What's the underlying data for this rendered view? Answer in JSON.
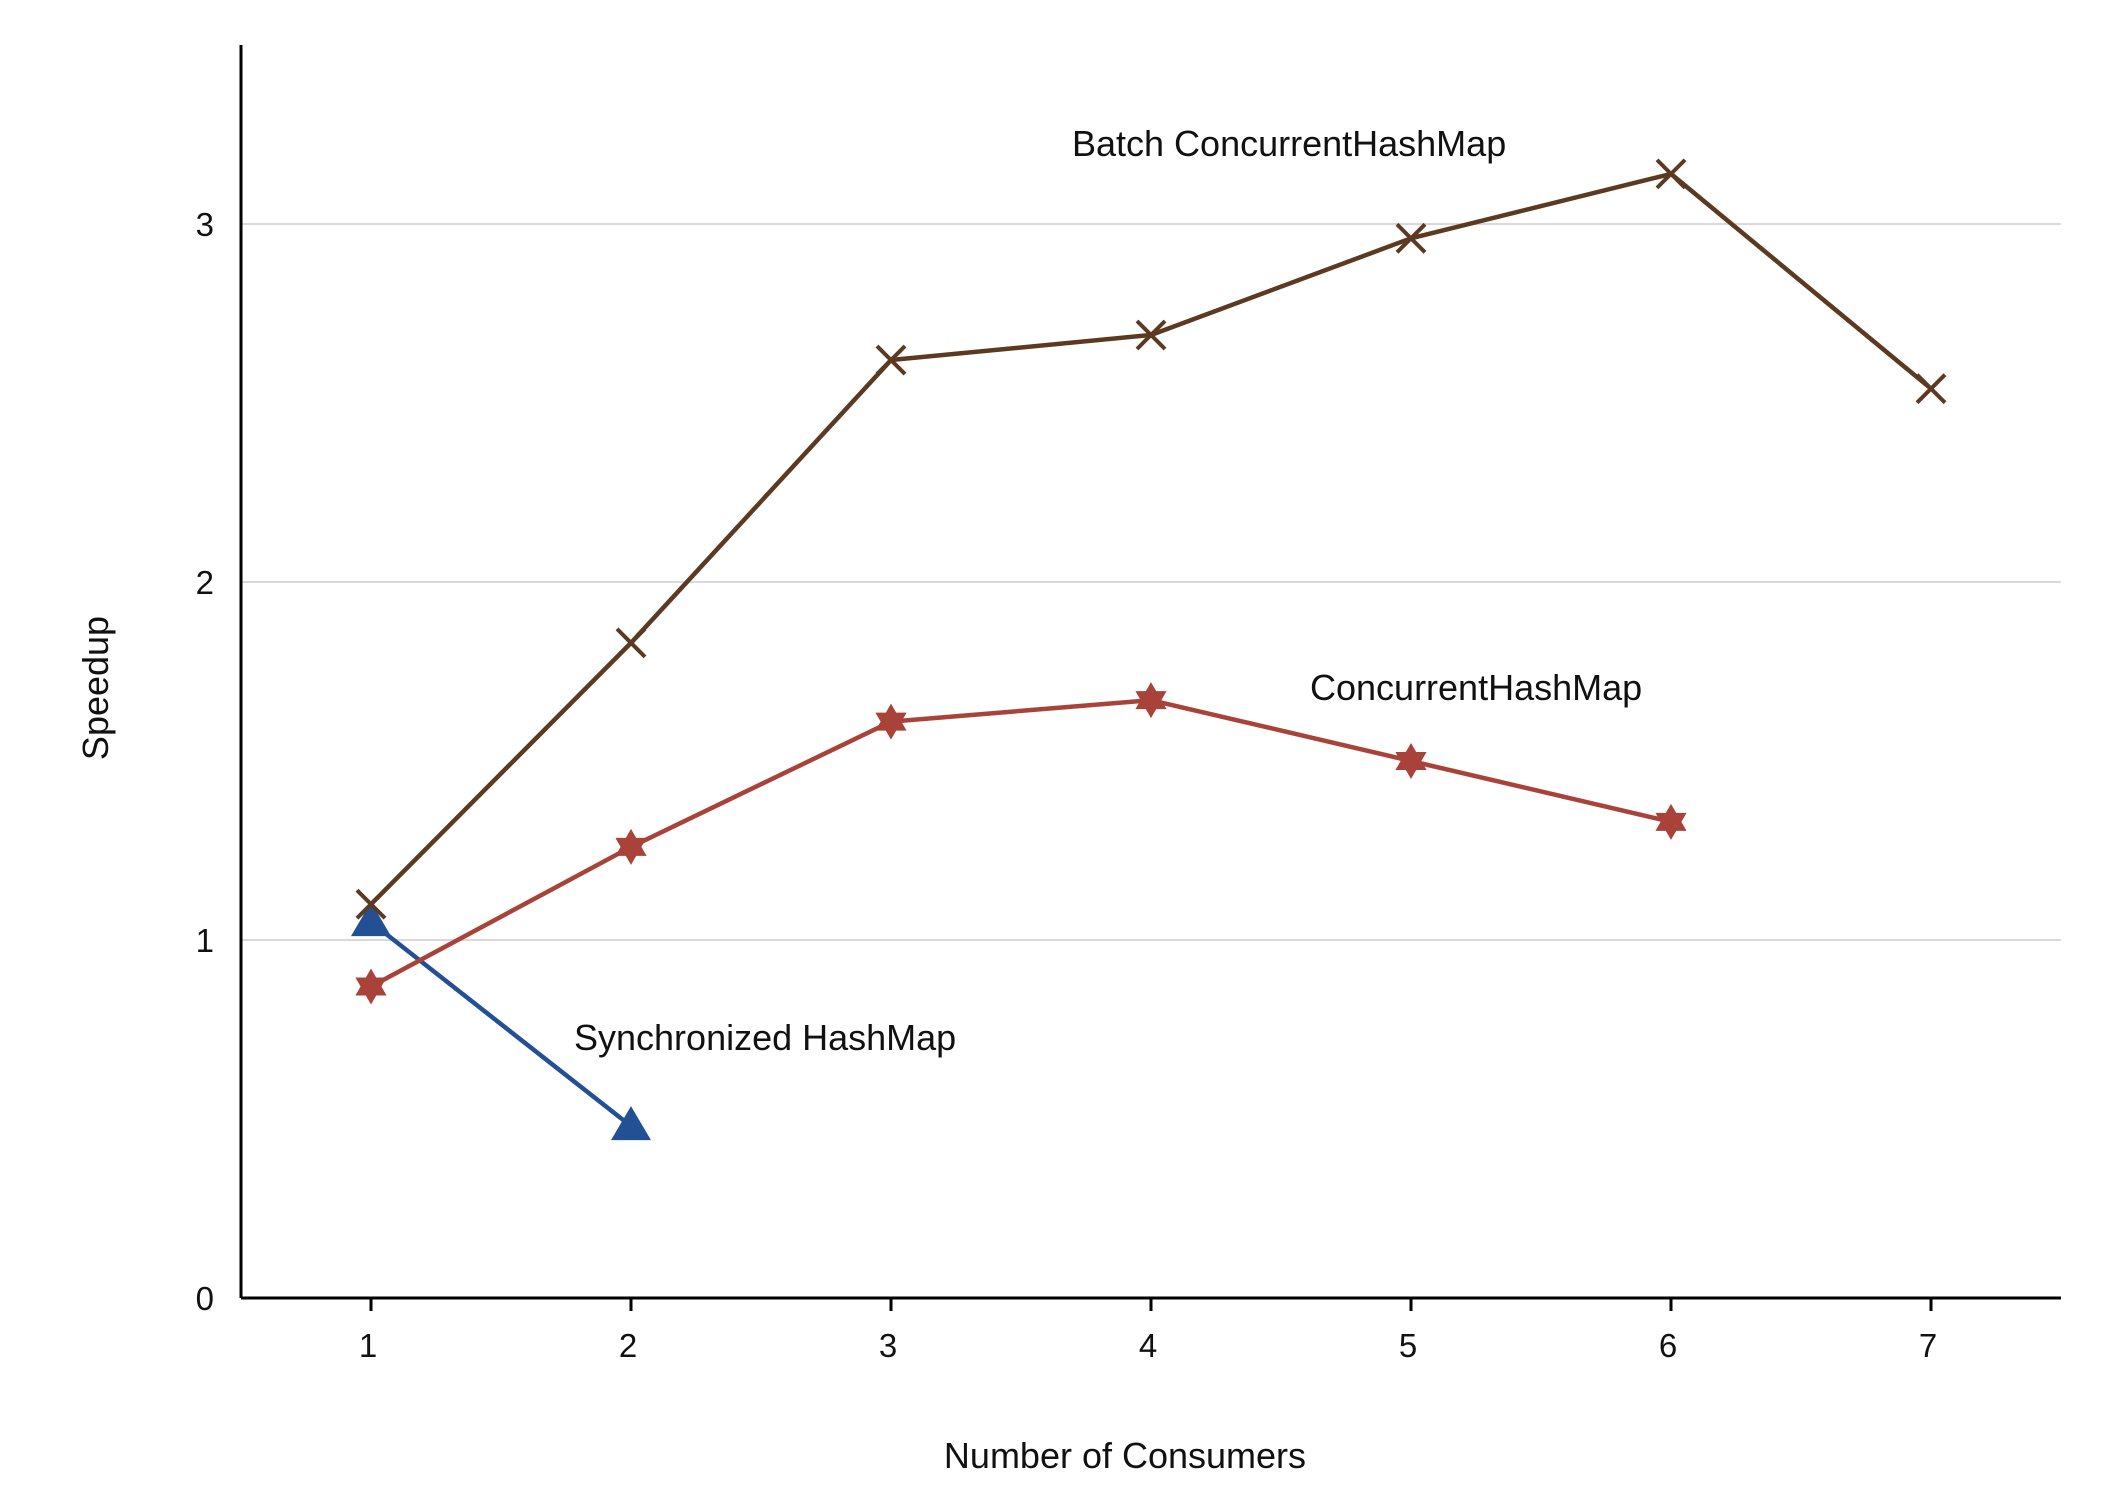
{
  "chart_data": {
    "type": "line",
    "title": "",
    "xlabel": "Number of Consumers",
    "ylabel": "Speedup",
    "xlim": [
      0.5,
      7.5
    ],
    "ylim": [
      0,
      3.5
    ],
    "x_ticks": [
      1,
      2,
      3,
      4,
      5,
      6,
      7
    ],
    "y_ticks": [
      0,
      1,
      2,
      3
    ],
    "grid": true,
    "legend": "none (series labelled directly on the plot)",
    "series": [
      {
        "name": "Batch ConcurrentHashMap",
        "color": "#5c3a21",
        "marker": "x",
        "x": [
          1,
          2,
          3,
          4,
          5,
          6,
          7
        ],
        "y": [
          1.1,
          1.83,
          2.62,
          2.69,
          2.96,
          3.14,
          2.54
        ]
      },
      {
        "name": "ConcurrentHashMap",
        "color": "#a9433a",
        "marker": "star",
        "x": [
          1,
          2,
          3,
          4,
          5,
          6
        ],
        "y": [
          0.87,
          1.26,
          1.61,
          1.67,
          1.5,
          1.33
        ]
      },
      {
        "name": "Synchronized HashMap",
        "color": "#234f94",
        "marker": "triangle",
        "x": [
          1,
          2
        ],
        "y": [
          1.05,
          0.48
        ]
      }
    ]
  }
}
